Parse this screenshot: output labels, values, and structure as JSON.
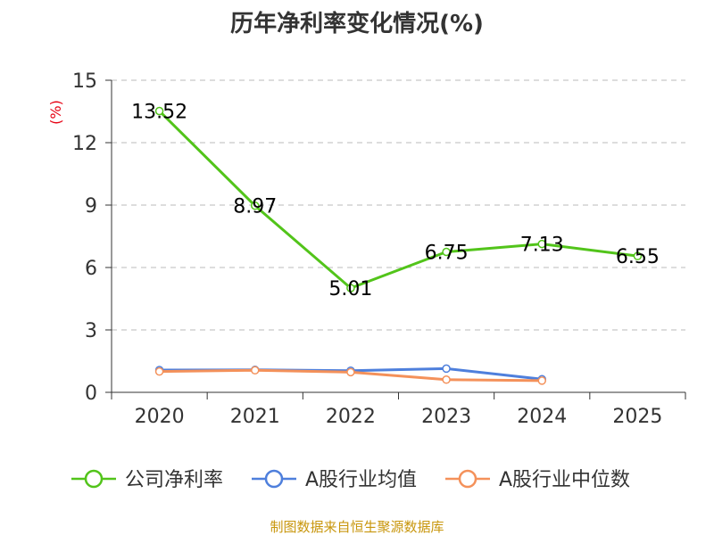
{
  "chart_data": {
    "type": "line",
    "title": "历年净利率变化情况(%)",
    "ylabel": "(%)",
    "xlabel": "",
    "categories": [
      "2020",
      "2021",
      "2022",
      "2023",
      "2024",
      "2025"
    ],
    "ylim": [
      0,
      15
    ],
    "yticks": [
      "0",
      "3",
      "6",
      "9",
      "12",
      "15"
    ],
    "grid": "horizontal-dashed",
    "legend_position": "bottom",
    "series": [
      {
        "name": "公司净利率",
        "color": "#52c41a",
        "values": [
          13.52,
          8.97,
          5.01,
          6.75,
          7.13,
          6.55
        ],
        "labels": [
          "13.52",
          "8.97",
          "5.01",
          "6.75",
          "7.13",
          "6.55"
        ]
      },
      {
        "name": "A股行业均值",
        "color": "#4e7fdc",
        "values": [
          1.07,
          1.08,
          1.04,
          1.14,
          0.63,
          null
        ]
      },
      {
        "name": "A股行业中位数",
        "color": "#f4915a",
        "values": [
          1.0,
          1.06,
          0.97,
          0.61,
          0.56,
          null
        ]
      }
    ],
    "source": "制图数据来自恒生聚源数据库"
  }
}
